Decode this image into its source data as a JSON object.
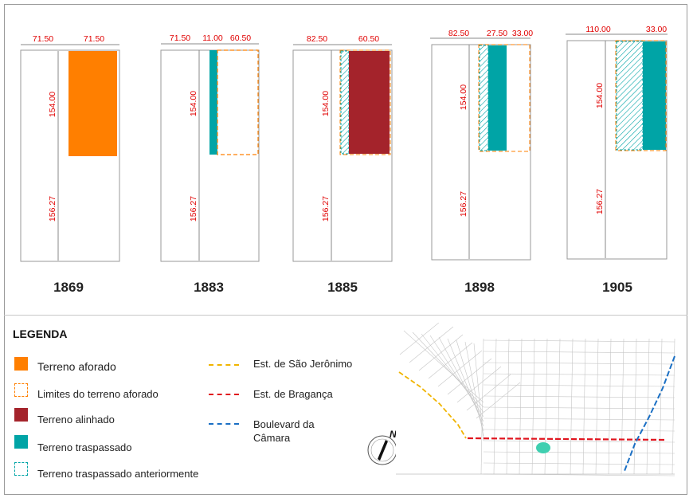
{
  "panels": [
    {
      "year": "1869",
      "top_dims": [
        "71.50",
        "71.50"
      ],
      "side_dims": [
        "154.00",
        "156.27"
      ]
    },
    {
      "year": "1883",
      "top_dims": [
        "71.50",
        "11.00",
        "60.50"
      ],
      "side_dims": [
        "154.00",
        "156.27"
      ]
    },
    {
      "year": "1885",
      "top_dims": [
        "82.50",
        "60.50"
      ],
      "side_dims": [
        "154.00",
        "156.27"
      ]
    },
    {
      "year": "1898",
      "top_dims": [
        "82.50",
        "27.50",
        "33.00"
      ],
      "side_dims": [
        "154.00",
        "156.27"
      ]
    },
    {
      "year": "1905",
      "top_dims": [
        "110.00",
        "33.00"
      ],
      "side_dims": [
        "154.00",
        "156.27"
      ]
    }
  ],
  "legend": {
    "title": "LEGENDA",
    "items": [
      {
        "label": "Terreno aforado",
        "color": "#ff7f00",
        "style": "fill"
      },
      {
        "label": "Limites do terreno aforado",
        "color": "#ff7f00",
        "style": "dashed"
      },
      {
        "label": "Terreno alinhado",
        "color": "#a4232b",
        "style": "fill"
      },
      {
        "label": "Terreno traspassado",
        "color": "#00a4a6",
        "style": "fill"
      },
      {
        "label": "Terreno traspassado anteriormente",
        "color": "#00a4a6",
        "style": "dashed"
      }
    ],
    "lines": [
      {
        "label": "Est. de São Jerônimo",
        "color": "#f0b400"
      },
      {
        "label": "Est. de Bragança",
        "color": "#e0141e"
      },
      {
        "label_line1": "Boulevard da",
        "label_line2": "Câmara",
        "color": "#1a6fc4"
      }
    ]
  },
  "compass": {
    "label": "N"
  },
  "colors": {
    "dimension": "#e00000",
    "outline": "#8a8a8a"
  }
}
